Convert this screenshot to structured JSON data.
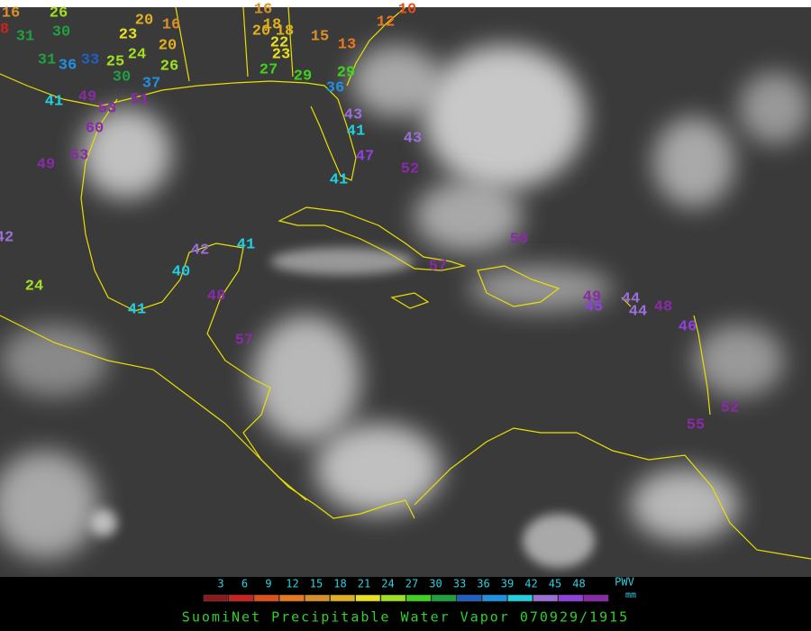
{
  "map": {
    "title": "SuomiNet Precipitable Water Vapor 070929/1915",
    "scale": {
      "ticks": [
        3,
        6,
        9,
        12,
        15,
        18,
        21,
        24,
        27,
        30,
        33,
        36,
        39,
        42,
        45,
        48
      ],
      "colors": [
        "#8b1a1a",
        "#cc2222",
        "#e0501e",
        "#e8781e",
        "#d9902a",
        "#e0b020",
        "#e8e020",
        "#a0e020",
        "#40d020",
        "#20a040",
        "#2060c0",
        "#2090e0",
        "#20d0e0",
        "#9a70d8",
        "#9040e0",
        "#8a2aa8"
      ],
      "unit_label": "PWV",
      "unit": "mm"
    },
    "stations": [
      16,
      8,
      31,
      26,
      30,
      20,
      16,
      20,
      23,
      25,
      24,
      26,
      36,
      33,
      30,
      31,
      37,
      16,
      18,
      20,
      18,
      22,
      23,
      15,
      13,
      12,
      10,
      27,
      29,
      29,
      36,
      41,
      49,
      53,
      51,
      60,
      53,
      49,
      43,
      41,
      43,
      47,
      52,
      41,
      50,
      57,
      42,
      41,
      40,
      48,
      41,
      24,
      57,
      49,
      45,
      44,
      44,
      48,
      46,
      52,
      55,
      42
    ]
  }
}
